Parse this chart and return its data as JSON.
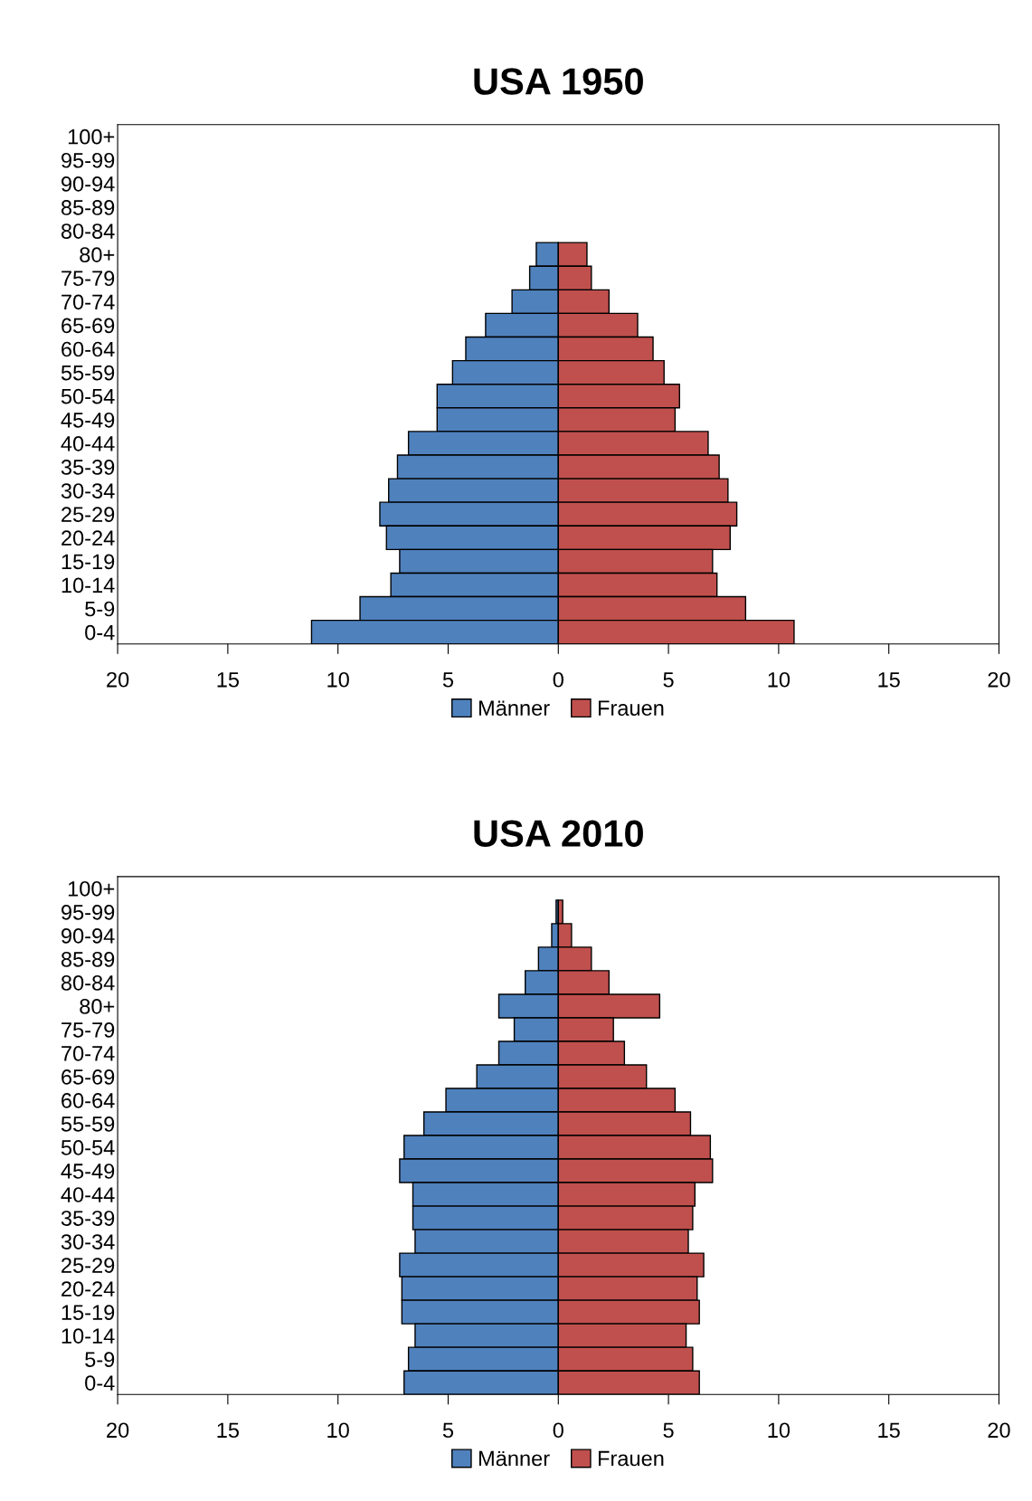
{
  "chart_data": [
    {
      "type": "bar",
      "orientation": "horizontal",
      "title": "USA 1950",
      "categories": [
        "100+",
        "95-99",
        "90-94",
        "85-89",
        "80-84",
        "80+",
        "75-79",
        "70-74",
        "65-69",
        "60-64",
        "55-59",
        "50-54",
        "45-49",
        "40-44",
        "35-39",
        "30-34",
        "25-29",
        "20-24",
        "15-19",
        "10-14",
        "5-9",
        "0-4"
      ],
      "series": [
        {
          "name": "Männer",
          "color": "#4f81bd",
          "values": [
            null,
            null,
            null,
            null,
            null,
            -1.0,
            -1.3,
            -2.1,
            -3.3,
            -4.2,
            -4.8,
            -5.5,
            -5.5,
            -6.8,
            -7.3,
            -7.7,
            -8.1,
            -7.8,
            -7.2,
            -7.6,
            -9.0,
            -11.2
          ]
        },
        {
          "name": "Frauen",
          "color": "#c0504d",
          "values": [
            null,
            null,
            null,
            null,
            null,
            1.3,
            1.5,
            2.3,
            3.6,
            4.3,
            4.8,
            5.5,
            5.3,
            6.8,
            7.3,
            7.7,
            8.1,
            7.8,
            7.0,
            7.2,
            8.5,
            10.7
          ]
        }
      ],
      "xlim": [
        -20,
        20
      ],
      "xticks": [
        {
          "value": -20,
          "label": "20"
        },
        {
          "value": -15,
          "label": "15"
        },
        {
          "value": -10,
          "label": "10"
        },
        {
          "value": -5,
          "label": "5"
        },
        0,
        5,
        10,
        15,
        20
      ],
      "grid": false,
      "legend": "bottom",
      "stacked": true
    },
    {
      "type": "bar",
      "orientation": "horizontal",
      "title": "USA 2010",
      "categories": [
        "100+",
        "95-99",
        "90-94",
        "85-89",
        "80-84",
        "80+",
        "75-79",
        "70-74",
        "65-69",
        "60-64",
        "55-59",
        "50-54",
        "45-49",
        "40-44",
        "35-39",
        "30-34",
        "25-29",
        "20-24",
        "15-19",
        "10-14",
        "5-9",
        "0-4"
      ],
      "series": [
        {
          "name": "Männer",
          "color": "#4f81bd",
          "values": [
            null,
            -0.1,
            -0.3,
            -0.9,
            -1.5,
            -2.7,
            -2.0,
            -2.7,
            -3.7,
            -5.1,
            -6.1,
            -7.0,
            -7.2,
            -6.6,
            -6.6,
            -6.5,
            -7.2,
            -7.1,
            -7.1,
            -6.5,
            -6.8,
            -7.0
          ]
        },
        {
          "name": "Frauen",
          "color": "#c0504d",
          "values": [
            null,
            0.2,
            0.6,
            1.5,
            2.3,
            4.6,
            2.5,
            3.0,
            4.0,
            5.3,
            6.0,
            6.9,
            7.0,
            6.2,
            6.1,
            5.9,
            6.6,
            6.3,
            6.4,
            5.8,
            6.1,
            6.4
          ]
        }
      ],
      "xlim": [
        -20,
        20
      ],
      "xticks": [
        {
          "value": -20,
          "label": "20"
        },
        {
          "value": -15,
          "label": "15"
        },
        {
          "value": -10,
          "label": "10"
        },
        {
          "value": -5,
          "label": "5"
        },
        0,
        5,
        10,
        15,
        20
      ],
      "grid": false,
      "legend": "bottom",
      "stacked": true
    }
  ]
}
